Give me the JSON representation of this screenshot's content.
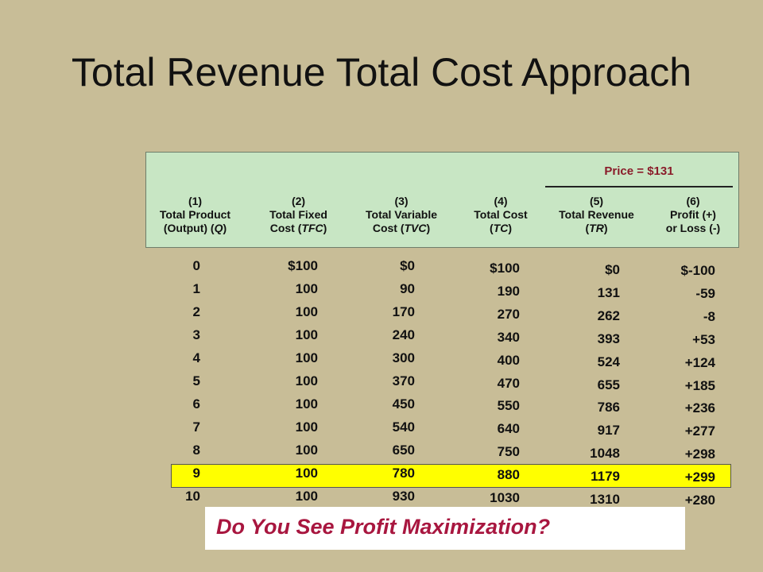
{
  "title": "Total Revenue Total Cost Approach",
  "price_label": "Price = $131",
  "headers": [
    {
      "num": "(1)",
      "l1": "Total Product",
      "l2a": "(Output) (",
      "abbr": "Q",
      "l2b": ")"
    },
    {
      "num": "(2)",
      "l1": "Total Fixed",
      "l2a": "Cost (",
      "abbr": "TFC",
      "l2b": ")"
    },
    {
      "num": "(3)",
      "l1": "Total Variable",
      "l2a": "Cost (",
      "abbr": "TVC",
      "l2b": ")"
    },
    {
      "num": "(4)",
      "l1": "Total Cost",
      "l2a": "(",
      "abbr": "TC",
      "l2b": ")"
    },
    {
      "num": "(5)",
      "l1": "Total Revenue",
      "l2a": "(",
      "abbr": "TR",
      "l2b": ")"
    },
    {
      "num": "(6)",
      "l1": "Profit (+)",
      "l2a": "or Loss (-)",
      "abbr": "",
      "l2b": ""
    }
  ],
  "columns": {
    "q": [
      "0",
      "1",
      "2",
      "3",
      "4",
      "5",
      "6",
      "7",
      "8",
      "9",
      "10"
    ],
    "tfc": [
      "$100",
      "100",
      "100",
      "100",
      "100",
      "100",
      "100",
      "100",
      "100",
      "100",
      "100"
    ],
    "tvc": [
      "$0",
      "90",
      "170",
      "240",
      "300",
      "370",
      "450",
      "540",
      "650",
      "780",
      "930"
    ],
    "tc": [
      "$100",
      "190",
      "270",
      "340",
      "400",
      "470",
      "550",
      "640",
      "750",
      "880",
      "1030"
    ],
    "tr": [
      "$0",
      "131",
      "262",
      "393",
      "524",
      "655",
      "786",
      "917",
      "1048",
      "1179",
      "1310"
    ],
    "profit": [
      "$-100",
      "-59",
      "-8",
      "+53",
      "+124",
      "+185",
      "+236",
      "+277",
      "+298",
      "+299",
      "+280"
    ]
  },
  "highlight_row_index": 9,
  "highlight_color": "#ffff00",
  "prompt_text": "Do You See Profit Maximization?",
  "colors": {
    "background": "#c8bd97",
    "header_box": "#c8e6c4",
    "price_text": "#8a1c2a",
    "prompt_text": "#a8163f"
  }
}
